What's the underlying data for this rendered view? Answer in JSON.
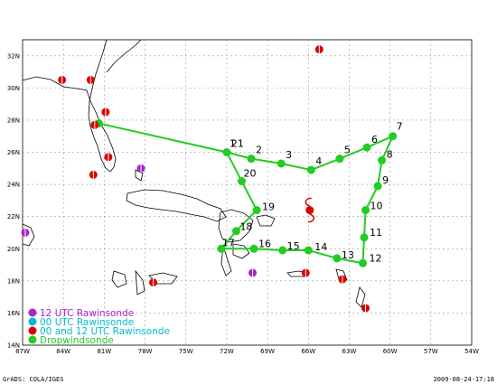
{
  "map": {
    "lon_ticks": [
      "87W",
      "84W",
      "81W",
      "78W",
      "75W",
      "72W",
      "69W",
      "66W",
      "63W",
      "60W",
      "57W",
      "54W"
    ],
    "lat_ticks": [
      "32N",
      "30N",
      "28N",
      "26N",
      "24N",
      "22N",
      "20N",
      "18N",
      "16N",
      "14N"
    ]
  },
  "route": {
    "color": "#22cc22",
    "waypoints": [
      {
        "label": "",
        "lon": -81.4,
        "lat": 27.8
      },
      {
        "label": "21",
        "lon": -72.0,
        "lat": 26.0
      },
      {
        "label": "2",
        "lon": -70.2,
        "lat": 25.6
      },
      {
        "label": "3",
        "lon": -68.0,
        "lat": 25.3
      },
      {
        "label": "4",
        "lon": -65.8,
        "lat": 24.9
      },
      {
        "label": "5",
        "lon": -63.7,
        "lat": 25.6
      },
      {
        "label": "6",
        "lon": -61.7,
        "lat": 26.3
      },
      {
        "label": "7",
        "lon": -59.8,
        "lat": 27.0
      },
      {
        "label": "8",
        "lon": -60.6,
        "lat": 25.5
      },
      {
        "label": "9",
        "lon": -60.9,
        "lat": 23.9
      },
      {
        "label": "10",
        "lon": -61.8,
        "lat": 22.4
      },
      {
        "label": "11",
        "lon": -61.9,
        "lat": 20.7
      },
      {
        "label": "12",
        "lon": -62.0,
        "lat": 19.1
      },
      {
        "label": "13",
        "lon": -63.9,
        "lat": 19.4
      },
      {
        "label": "14",
        "lon": -66.0,
        "lat": 19.9
      },
      {
        "label": "15",
        "lon": -67.9,
        "lat": 19.9
      },
      {
        "label": "16",
        "lon": -70.0,
        "lat": 20.0
      },
      {
        "label": "17",
        "lon": -72.4,
        "lat": 20.0
      },
      {
        "label": "18",
        "lon": -71.3,
        "lat": 21.1
      },
      {
        "label": "19",
        "lon": -69.8,
        "lat": 22.4
      },
      {
        "label": "20",
        "lon": -70.9,
        "lat": 24.2
      },
      {
        "label": "1",
        "lon": -72.0,
        "lat": 26.0
      }
    ]
  },
  "rawinsondes": {
    "red": [
      {
        "lon": -84.1,
        "lat": 30.5
      },
      {
        "lon": -82.0,
        "lat": 30.5
      },
      {
        "lon": -80.9,
        "lat": 28.5
      },
      {
        "lon": -81.7,
        "lat": 27.7
      },
      {
        "lon": -80.7,
        "lat": 25.7
      },
      {
        "lon": -81.8,
        "lat": 24.6
      },
      {
        "lon": -77.4,
        "lat": 17.9
      },
      {
        "lon": -66.2,
        "lat": 18.5
      },
      {
        "lon": -63.5,
        "lat": 18.1
      },
      {
        "lon": -61.8,
        "lat": 16.3
      },
      {
        "lon": -65.2,
        "lat": 32.4
      }
    ],
    "purple": [
      {
        "lon": -78.3,
        "lat": 25.0
      },
      {
        "lon": -86.8,
        "lat": 21.0
      },
      {
        "lon": -70.1,
        "lat": 18.5
      }
    ]
  },
  "storm": {
    "symbol": "hurricane-icon",
    "lon": -65.9,
    "lat": 22.4,
    "color": "#dd0000"
  },
  "legend": [
    {
      "label": "12 UTC Rawinsonde",
      "color": "#aa22cc",
      "marker": "#aa22cc"
    },
    {
      "label": "00 UTC Rawinsonde",
      "color": "#00bbcc",
      "marker": "#00bbcc"
    },
    {
      "label": "00 and 12 UTC Rawinsonde",
      "color": "#00bbcc",
      "marker": "#dd0000"
    },
    {
      "label": "Dropwindsonde",
      "color": "#22cc22",
      "marker": "#22cc22"
    }
  ],
  "footer": {
    "left": "GrADS: COLA/IGES",
    "right": "2009-08-24-17:18"
  }
}
